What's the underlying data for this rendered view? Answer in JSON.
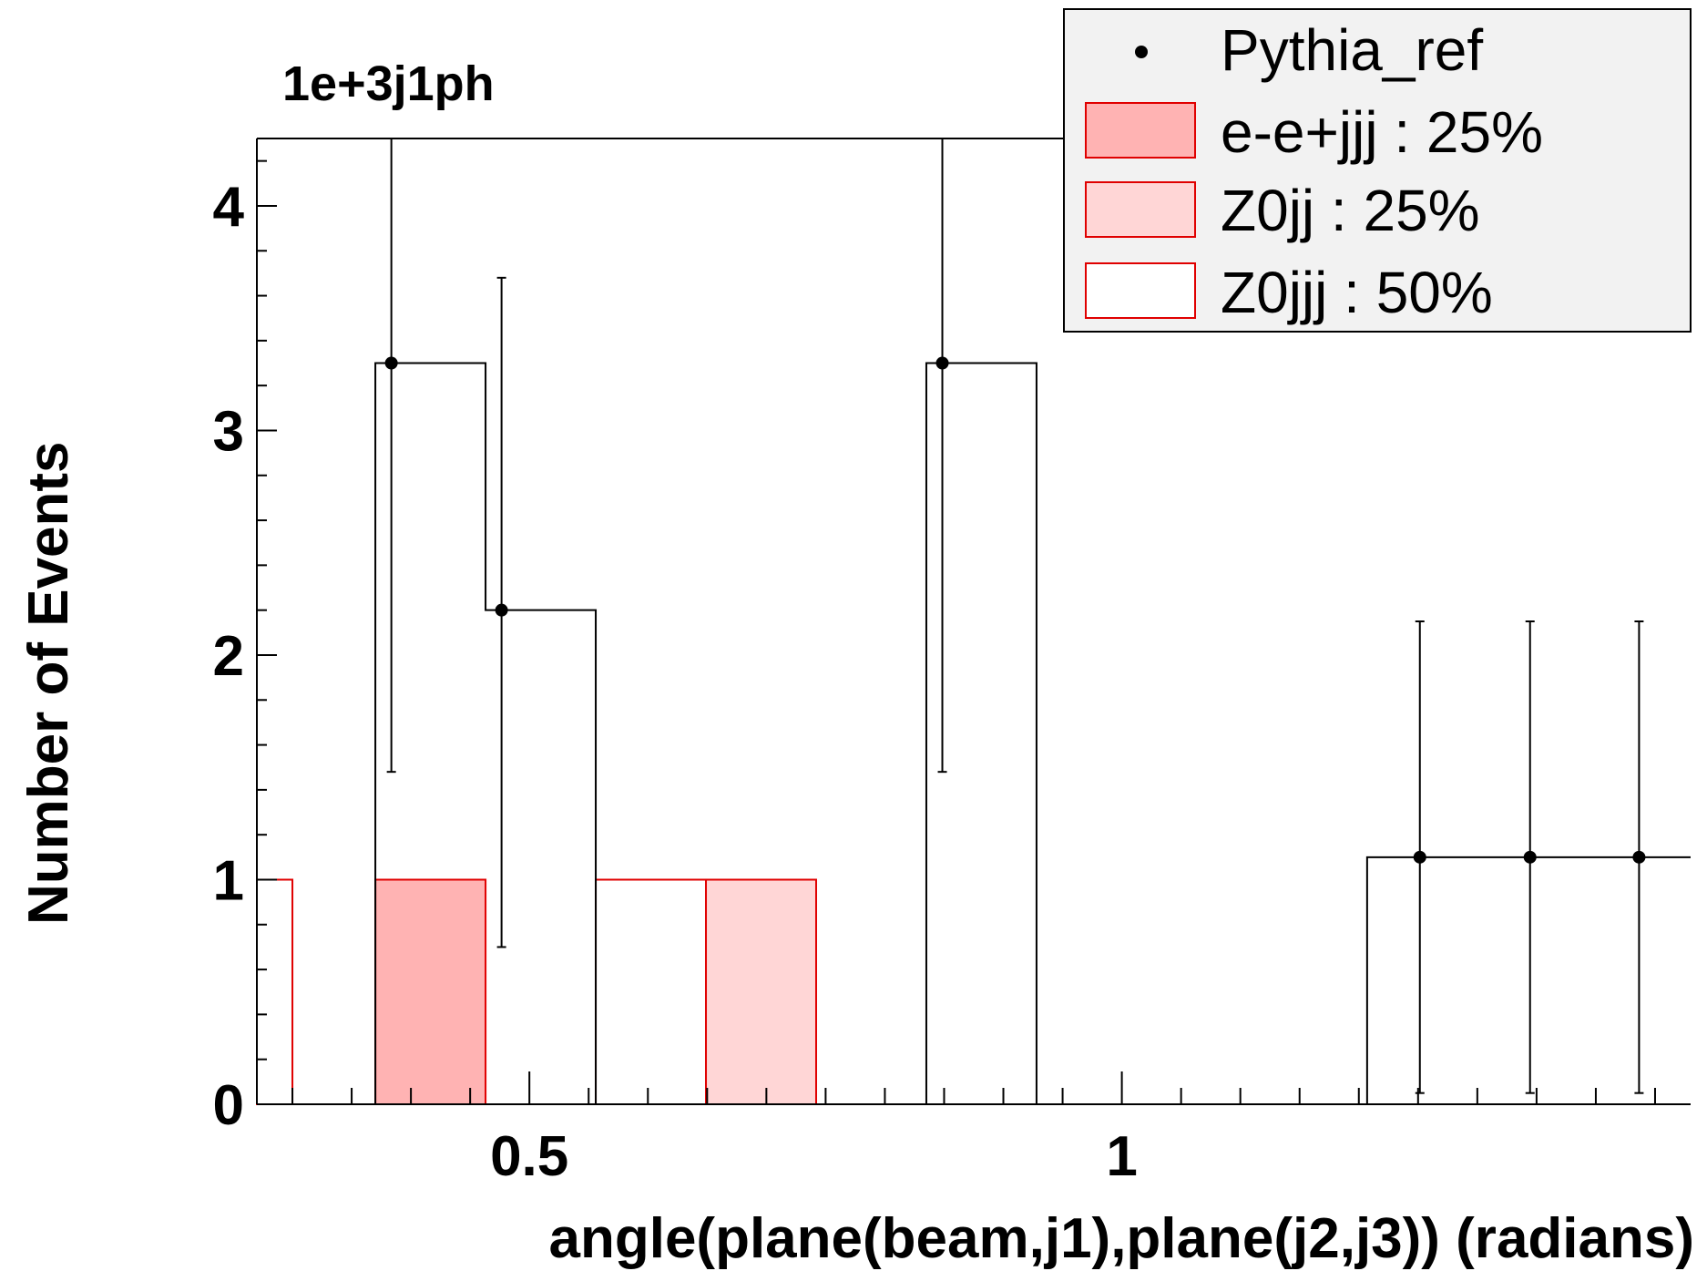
{
  "chart_data": {
    "type": "bar",
    "title": "1e+3j1ph",
    "xlabel": "angle(plane(beam,j1),plane(j2,j3)) (radians)",
    "ylabel": "Number of Events",
    "xlim": [
      0.27,
      1.48
    ],
    "ylim": [
      0,
      4.3
    ],
    "x_ticks": [
      0.5,
      1
    ],
    "y_ticks": [
      0,
      1,
      2,
      3,
      4
    ],
    "grid": false,
    "legend_position": "top-right",
    "bin_edges": [
      0.27,
      0.3,
      0.37,
      0.463,
      0.556,
      0.649,
      0.742,
      0.835,
      0.928,
      1.021,
      1.114,
      1.207,
      1.3,
      1.393,
      1.48
    ],
    "series": [
      {
        "name": "e-e+jjj : 25%",
        "style": "filled",
        "fill": "#ffb3b3",
        "stroke": "#e00000",
        "values": [
          0,
          0,
          1,
          0,
          0,
          0,
          0,
          0,
          0,
          0,
          0,
          0,
          0,
          0
        ]
      },
      {
        "name": "Z0jj : 25%",
        "style": "filled",
        "fill": "#ffd6d6",
        "stroke": "#e00000",
        "values": [
          0,
          0,
          0,
          0,
          0,
          1,
          0,
          0,
          0,
          0,
          0,
          0,
          0,
          0
        ]
      },
      {
        "name": "Z0jjj : 50%",
        "style": "outline",
        "fill": "#ffffff",
        "stroke": "#e00000",
        "values": [
          1,
          0,
          0,
          0,
          1,
          0,
          0,
          0,
          0,
          0,
          0,
          0,
          0,
          0
        ]
      },
      {
        "name": "Pythia_ref",
        "style": "points",
        "x": [
          0.3835,
          0.4765,
          0.8485,
          1.2515,
          1.3445,
          1.4365
        ],
        "y": [
          3.3,
          2.2,
          3.3,
          1.1,
          1.1,
          1.1
        ],
        "yerr_low": [
          1.82,
          1.5,
          1.82,
          1.05,
          1.05,
          1.05
        ],
        "yerr_high": [
          1.0,
          1.48,
          1.0,
          1.05,
          1.05,
          1.05
        ]
      }
    ],
    "reference_outline": [
      {
        "x0": 0.27,
        "x1": 0.3,
        "y": 0
      },
      {
        "x0": 0.3,
        "x1": 0.37,
        "y": 0
      },
      {
        "x0": 0.37,
        "x1": 0.463,
        "y": 3.3
      },
      {
        "x0": 0.463,
        "x1": 0.556,
        "y": 2.2
      },
      {
        "x0": 0.556,
        "x1": 0.835,
        "y": 0
      },
      {
        "x0": 0.835,
        "x1": 0.928,
        "y": 3.3
      },
      {
        "x0": 0.928,
        "x1": 1.207,
        "y": 0
      },
      {
        "x0": 1.207,
        "x1": 1.48,
        "y": 1.1
      }
    ]
  }
}
